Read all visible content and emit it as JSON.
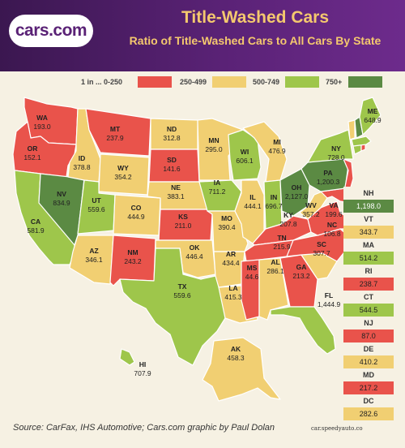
{
  "header": {
    "logo_text": "cars.com",
    "title": "Title-Washed Cars",
    "subtitle": "Ratio of Title-Washed Cars to All Cars By State"
  },
  "legend": [
    {
      "label": "1 in ... 0-250",
      "color": "#e9534b"
    },
    {
      "label": "250-499",
      "color": "#f1cf72"
    },
    {
      "label": "500-749",
      "color": "#9ec64b"
    },
    {
      "label": "750+",
      "color": "#5b8a43"
    }
  ],
  "colors": {
    "red": "#e9534b",
    "yellow": "#f1cf72",
    "light_green": "#9ec64b",
    "dark_green": "#5b8a43",
    "header_purple": "#4b1d63",
    "title_gold": "#f4c86e"
  },
  "states": {
    "WA": "193.0",
    "OR": "152.1",
    "CA": "581.9",
    "NV": "834.9",
    "ID": "378.8",
    "MT": "237.9",
    "WY": "354.2",
    "UT": "559.6",
    "AZ": "346.1",
    "CO": "444.9",
    "NM": "243.2",
    "ND": "312.8",
    "SD": "141.6",
    "NE": "383.1",
    "KS": "211.0",
    "OK": "446.4",
    "TX": "559.6",
    "MN": "295.0",
    "IA": "711.2",
    "MO": "390.4",
    "AR": "434.4",
    "LA": "415.3",
    "WI": "606.1",
    "IL": "444.1",
    "MI": "476.9",
    "IN": "696.7",
    "OH": "2,127.0",
    "KY": "207.8",
    "TN": "215.9",
    "MS": "44.6",
    "AL": "286.1",
    "GA": "213.2",
    "FL": "1,444.9",
    "SC": "307.7",
    "NC": "106.8",
    "VA": "199.6",
    "WV": "357.2",
    "PA": "1,200.3",
    "NY": "728.0",
    "ME": "648.9",
    "AK": "458.3",
    "HI": "707.9"
  },
  "northeast": [
    {
      "abbr": "NH",
      "value": "1,198.0"
    },
    {
      "abbr": "VT",
      "value": "343.7"
    },
    {
      "abbr": "MA",
      "value": "514.2"
    },
    {
      "abbr": "RI",
      "value": "238.7"
    },
    {
      "abbr": "CT",
      "value": "544.5"
    },
    {
      "abbr": "NJ",
      "value": "87.0"
    },
    {
      "abbr": "DE",
      "value": "410.2"
    },
    {
      "abbr": "MD",
      "value": "217.2"
    },
    {
      "abbr": "DC",
      "value": "282.6"
    }
  ],
  "footer": {
    "source": "Source: CarFax, IHS Automotive; Cars.com graphic by Paul Dolan",
    "credit": "car.speedyauto.co"
  }
}
